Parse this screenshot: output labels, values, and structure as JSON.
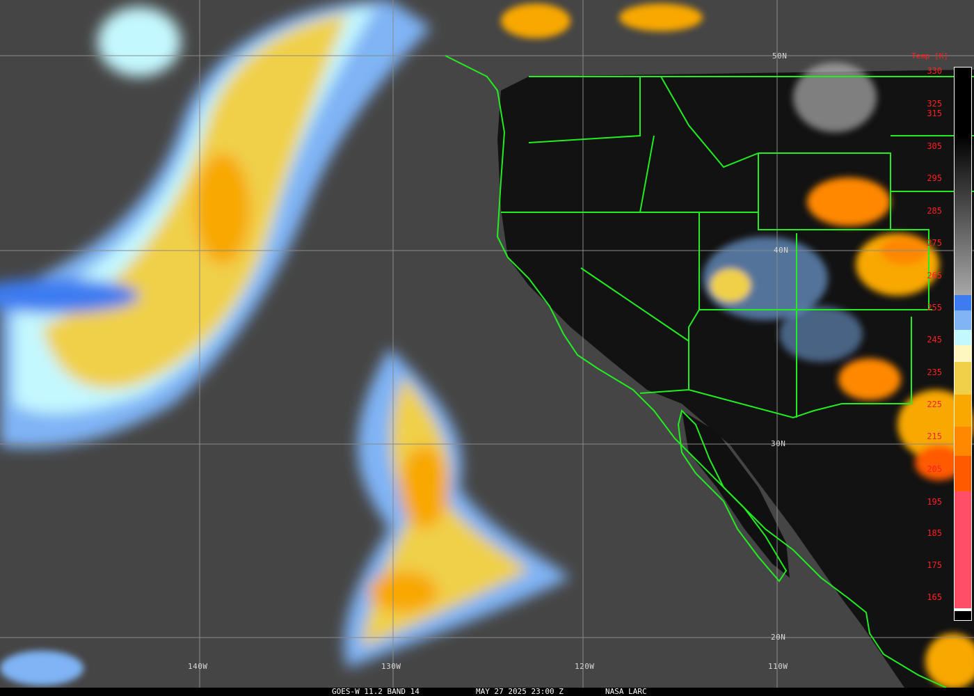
{
  "caption": {
    "product": "GOES-W 11.2 BAND 14",
    "datetime": "MAY 27 2025 23:00 Z",
    "source": "NASA LARC"
  },
  "grid": {
    "latitudes": [
      "50N",
      "40N",
      "30N",
      "20N"
    ],
    "longitudes": [
      "140W",
      "130W",
      "120W",
      "110W"
    ]
  },
  "colorbar": {
    "title": "Temp [K]",
    "ticks": [
      "330",
      "325",
      "315",
      "305",
      "295",
      "285",
      "275",
      "265",
      "255",
      "245",
      "235",
      "225",
      "215",
      "205",
      "195",
      "185",
      "175",
      "165"
    ],
    "colors": {
      "warm_top": "#000000",
      "gray_bottom": "#a8a8a8",
      "blue": "#3c7cf0",
      "light_blue": "#7fb4f5",
      "pale_cyan": "#c4f8ff",
      "pale_yellow": "#fff6c0",
      "yellow": "#f0d048",
      "yellow_orange": "#f8a800",
      "orange": "#ff8800",
      "dark_orange": "#ff5a00",
      "pink": "#ff4f68",
      "cold_end": "#000000"
    }
  },
  "boundary_color": "#22ee22"
}
